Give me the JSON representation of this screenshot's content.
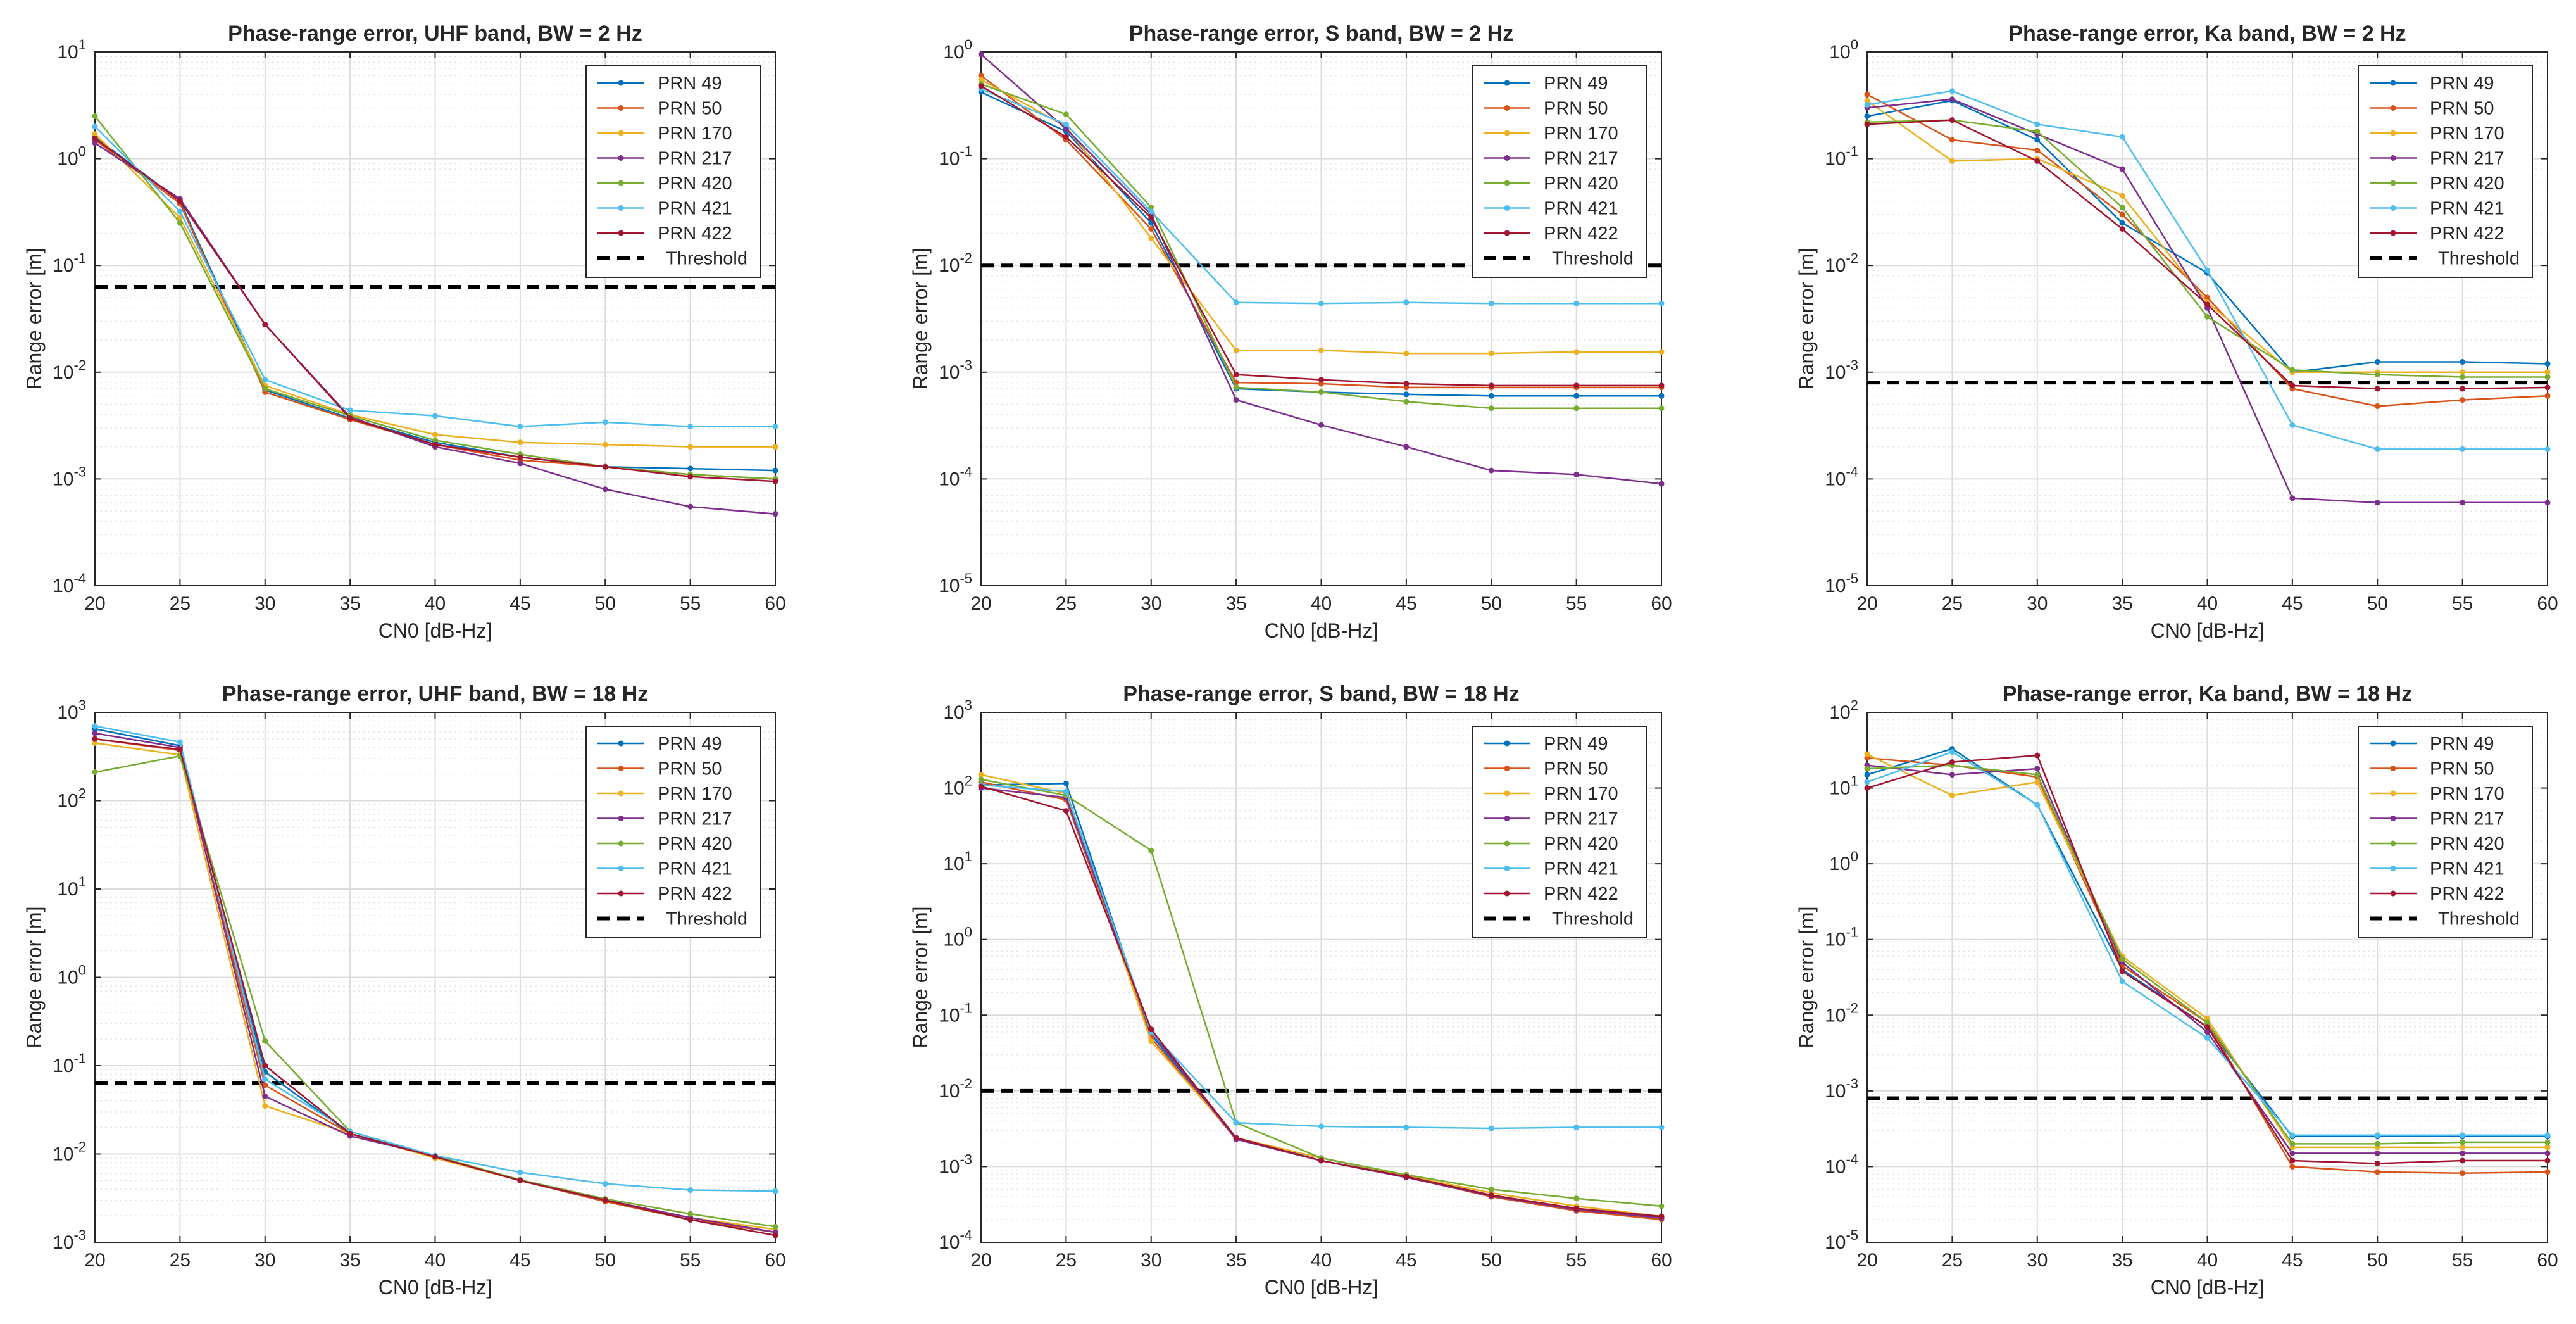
{
  "colors": {
    "PRN 49": "#0072BD",
    "PRN 50": "#D95319",
    "PRN 170": "#EDB120",
    "PRN 217": "#7E2F8E",
    "PRN 420": "#77AC30",
    "PRN 421": "#4DBEEE",
    "PRN 422": "#A2142F",
    "Threshold": "#000000"
  },
  "chart_data": [
    {
      "type": "line",
      "title": "Phase-range error, UHF band, BW = 2 Hz",
      "xlabel": "CN0 [dB-Hz]",
      "ylabel": "Range error [m]",
      "yscale": "log",
      "x": [
        20,
        25,
        30,
        35,
        40,
        45,
        50,
        55,
        60
      ],
      "xlim": [
        20,
        60
      ],
      "ylim_exp": [
        -4,
        1
      ],
      "legend_location": "top-right",
      "threshold": 0.063,
      "series": [
        {
          "name": "PRN 49",
          "values": [
            1.6,
            0.4,
            0.0068,
            0.0037,
            0.0022,
            0.0016,
            0.0013,
            0.00125,
            0.0012
          ]
        },
        {
          "name": "PRN 50",
          "values": [
            1.5,
            0.38,
            0.0065,
            0.0036,
            0.0021,
            0.0015,
            0.0013,
            0.0011,
            0.001
          ]
        },
        {
          "name": "PRN 170",
          "values": [
            1.7,
            0.28,
            0.0075,
            0.004,
            0.0026,
            0.0022,
            0.0021,
            0.002,
            0.002
          ]
        },
        {
          "name": "PRN 217",
          "values": [
            1.4,
            0.42,
            0.028,
            0.0038,
            0.002,
            0.0014,
            0.0008,
            0.00055,
            0.00047
          ]
        },
        {
          "name": "PRN 420",
          "values": [
            2.5,
            0.25,
            0.007,
            0.0039,
            0.0023,
            0.0017,
            0.0013,
            0.0011,
            0.001
          ]
        },
        {
          "name": "PRN 421",
          "values": [
            2.0,
            0.32,
            0.0085,
            0.0044,
            0.0039,
            0.0031,
            0.0034,
            0.0031,
            0.0031
          ]
        },
        {
          "name": "PRN 422",
          "values": [
            1.55,
            0.4,
            0.028,
            0.0037,
            0.0021,
            0.0016,
            0.0013,
            0.00105,
            0.00095
          ]
        }
      ]
    },
    {
      "type": "line",
      "title": "Phase-range error, S band, BW = 2 Hz",
      "xlabel": "CN0 [dB-Hz]",
      "ylabel": "Range error [m]",
      "yscale": "log",
      "x": [
        20,
        25,
        30,
        35,
        40,
        45,
        50,
        55,
        60
      ],
      "xlim": [
        20,
        60
      ],
      "ylim_exp": [
        -5,
        0
      ],
      "legend_location": "top-right",
      "threshold": 0.01,
      "series": [
        {
          "name": "PRN 49",
          "values": [
            0.42,
            0.18,
            0.025,
            0.0007,
            0.00065,
            0.00062,
            0.0006,
            0.0006,
            0.0006
          ]
        },
        {
          "name": "PRN 50",
          "values": [
            0.6,
            0.15,
            0.022,
            0.0008,
            0.00078,
            0.00072,
            0.00072,
            0.00072,
            0.00072
          ]
        },
        {
          "name": "PRN 170",
          "values": [
            0.55,
            0.2,
            0.018,
            0.0016,
            0.0016,
            0.0015,
            0.0015,
            0.00155,
            0.00155
          ]
        },
        {
          "name": "PRN 217",
          "values": [
            0.95,
            0.19,
            0.03,
            0.00055,
            0.00032,
            0.0002,
            0.00012,
            0.00011,
            9e-05
          ]
        },
        {
          "name": "PRN 420",
          "values": [
            0.5,
            0.26,
            0.035,
            0.00072,
            0.00065,
            0.00053,
            0.00046,
            0.00046,
            0.00046
          ]
        },
        {
          "name": "PRN 421",
          "values": [
            0.45,
            0.21,
            0.032,
            0.0045,
            0.0044,
            0.0045,
            0.0044,
            0.0044,
            0.0044
          ]
        },
        {
          "name": "PRN 422",
          "values": [
            0.48,
            0.16,
            0.028,
            0.00095,
            0.00085,
            0.00078,
            0.00075,
            0.00075,
            0.00075
          ]
        }
      ]
    },
    {
      "type": "line",
      "title": "Phase-range error, Ka band, BW = 2 Hz",
      "xlabel": "CN0 [dB-Hz]",
      "ylabel": "Range error [m]",
      "yscale": "log",
      "x": [
        20,
        25,
        30,
        35,
        40,
        45,
        50,
        55,
        60
      ],
      "xlim": [
        20,
        60
      ],
      "ylim_exp": [
        -5,
        0
      ],
      "legend_location": "top-right",
      "threshold": 0.0008,
      "series": [
        {
          "name": "PRN 49",
          "values": [
            0.25,
            0.35,
            0.15,
            0.025,
            0.0085,
            0.001,
            0.00125,
            0.00125,
            0.0012
          ]
        },
        {
          "name": "PRN 50",
          "values": [
            0.4,
            0.15,
            0.12,
            0.03,
            0.005,
            0.0007,
            0.00048,
            0.00055,
            0.0006
          ]
        },
        {
          "name": "PRN 170",
          "values": [
            0.35,
            0.095,
            0.1,
            0.045,
            0.0045,
            0.001,
            0.001,
            0.001,
            0.001
          ]
        },
        {
          "name": "PRN 217",
          "values": [
            0.3,
            0.36,
            0.17,
            0.08,
            0.004,
            6.6e-05,
            6e-05,
            6e-05,
            6e-05
          ]
        },
        {
          "name": "PRN 420",
          "values": [
            0.22,
            0.23,
            0.18,
            0.035,
            0.0033,
            0.00105,
            0.00095,
            0.0009,
            0.0009
          ]
        },
        {
          "name": "PRN 421",
          "values": [
            0.32,
            0.43,
            0.21,
            0.16,
            0.009,
            0.00032,
            0.00019,
            0.00019,
            0.00019
          ]
        },
        {
          "name": "PRN 422",
          "values": [
            0.21,
            0.23,
            0.095,
            0.022,
            0.0043,
            0.00075,
            0.0007,
            0.0007,
            0.00072
          ]
        }
      ]
    },
    {
      "type": "line",
      "title": "Phase-range error, UHF band, BW = 18 Hz",
      "xlabel": "CN0 [dB-Hz]",
      "ylabel": "Range error [m]",
      "yscale": "log",
      "x": [
        20,
        25,
        30,
        35,
        40,
        45,
        50,
        55,
        60
      ],
      "xlim": [
        20,
        60
      ],
      "ylim_exp": [
        -3,
        3
      ],
      "legend_location": "top-right",
      "threshold": 0.063,
      "series": [
        {
          "name": "PRN 49",
          "values": [
            650,
            420,
            0.085,
            0.017,
            0.0095,
            0.005,
            0.0029,
            0.0018,
            0.0013
          ]
        },
        {
          "name": "PRN 50",
          "values": [
            500,
            370,
            0.06,
            0.017,
            0.0092,
            0.005,
            0.0029,
            0.0018,
            0.0013
          ]
        },
        {
          "name": "PRN 170",
          "values": [
            450,
            330,
            0.035,
            0.017,
            0.009,
            0.005,
            0.003,
            0.0019,
            0.0014
          ]
        },
        {
          "name": "PRN 217",
          "values": [
            580,
            400,
            0.045,
            0.016,
            0.0095,
            0.005,
            0.003,
            0.0019,
            0.0013
          ]
        },
        {
          "name": "PRN 420",
          "values": [
            210,
            320,
            0.19,
            0.018,
            0.0095,
            0.0051,
            0.0031,
            0.0021,
            0.0015
          ]
        },
        {
          "name": "PRN 421",
          "values": [
            700,
            460,
            0.07,
            0.018,
            0.0096,
            0.0062,
            0.0046,
            0.0039,
            0.0038
          ]
        },
        {
          "name": "PRN 422",
          "values": [
            500,
            380,
            0.1,
            0.017,
            0.0093,
            0.005,
            0.003,
            0.0018,
            0.0012
          ]
        }
      ]
    },
    {
      "type": "line",
      "title": "Phase-range error, S band, BW = 18 Hz",
      "xlabel": "CN0 [dB-Hz]",
      "ylabel": "Range error [m]",
      "yscale": "log",
      "x": [
        20,
        25,
        30,
        35,
        40,
        45,
        50,
        55,
        60
      ],
      "xlim": [
        20,
        60
      ],
      "ylim_exp": [
        -4,
        3
      ],
      "legend_location": "top-right",
      "threshold": 0.01,
      "series": [
        {
          "name": "PRN 49",
          "values": [
            110,
            115,
            0.055,
            0.0023,
            0.0013,
            0.00075,
            0.00042,
            0.00027,
            0.00021
          ]
        },
        {
          "name": "PRN 50",
          "values": [
            120,
            70,
            0.05,
            0.0023,
            0.0012,
            0.00073,
            0.0004,
            0.00026,
            0.0002
          ]
        },
        {
          "name": "PRN 170",
          "values": [
            150,
            85,
            0.045,
            0.0024,
            0.0013,
            0.00076,
            0.00045,
            0.0003,
            0.00022
          ]
        },
        {
          "name": "PRN 217",
          "values": [
            100,
            75,
            0.06,
            0.0023,
            0.0012,
            0.00072,
            0.00041,
            0.00027,
            0.00021
          ]
        },
        {
          "name": "PRN 420",
          "values": [
            130,
            80,
            15,
            0.0038,
            0.0013,
            0.00078,
            0.0005,
            0.00038,
            0.0003
          ]
        },
        {
          "name": "PRN 421",
          "values": [
            110,
            90,
            0.06,
            0.0038,
            0.0034,
            0.0033,
            0.0032,
            0.0033,
            0.0033
          ]
        },
        {
          "name": "PRN 422",
          "values": [
            105,
            50,
            0.065,
            0.0024,
            0.0012,
            0.00074,
            0.00042,
            0.00028,
            0.00022
          ]
        }
      ]
    },
    {
      "type": "line",
      "title": "Phase-range error, Ka band, BW = 18 Hz",
      "xlabel": "CN0 [dB-Hz]",
      "ylabel": "Range error [m]",
      "yscale": "log",
      "x": [
        20,
        25,
        30,
        35,
        40,
        45,
        50,
        55,
        60
      ],
      "xlim": [
        20,
        60
      ],
      "ylim_exp": [
        -5,
        2
      ],
      "legend_location": "top-right",
      "threshold": 0.0008,
      "series": [
        {
          "name": "PRN 49",
          "values": [
            15,
            33,
            6,
            0.04,
            0.007,
            0.00025,
            0.00025,
            0.00025,
            0.00025
          ]
        },
        {
          "name": "PRN 50",
          "values": [
            25,
            20,
            14,
            0.045,
            0.008,
            0.0001,
            8.5e-05,
            8.2e-05,
            8.5e-05
          ]
        },
        {
          "name": "PRN 170",
          "values": [
            28,
            8,
            12,
            0.06,
            0.009,
            0.00018,
            0.00018,
            0.00018,
            0.00018
          ]
        },
        {
          "name": "PRN 217",
          "values": [
            20,
            15,
            18,
            0.05,
            0.006,
            0.00015,
            0.00015,
            0.00015,
            0.00015
          ]
        },
        {
          "name": "PRN 420",
          "values": [
            18,
            20,
            15,
            0.055,
            0.008,
            0.0002,
            0.0002,
            0.00021,
            0.00021
          ]
        },
        {
          "name": "PRN 421",
          "values": [
            12,
            30,
            6,
            0.028,
            0.005,
            0.00026,
            0.00026,
            0.00026,
            0.00026
          ]
        },
        {
          "name": "PRN 422",
          "values": [
            10,
            22,
            27,
            0.038,
            0.007,
            0.00012,
            0.00011,
            0.00012,
            0.00012
          ]
        }
      ]
    }
  ]
}
